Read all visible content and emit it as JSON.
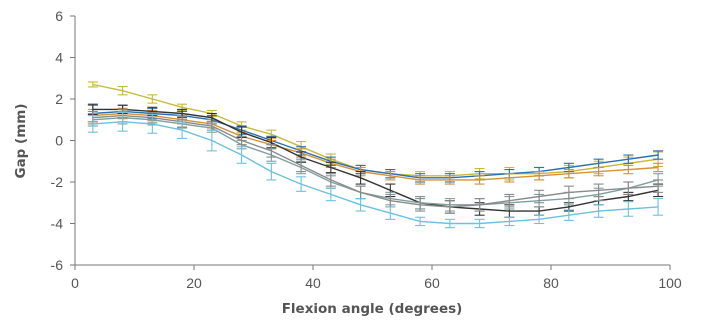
{
  "chart_data": {
    "type": "line",
    "title": "",
    "xlabel": "Flexion angle (degrees)",
    "ylabel": "Gap (mm)",
    "xlim": [
      0,
      100
    ],
    "ylim": [
      -6,
      6
    ],
    "xticks": [
      0,
      20,
      40,
      60,
      80,
      100
    ],
    "yticks": [
      -6,
      -4,
      -2,
      0,
      2,
      4,
      6
    ],
    "xtick_labels": [
      "0",
      "20",
      "40",
      "60",
      "80",
      "100"
    ],
    "ytick_labels": [
      "-6",
      "-4",
      "-2",
      "0",
      "2",
      "4",
      "6"
    ],
    "grid": false,
    "legend": "none",
    "x": [
      3,
      8,
      13,
      18,
      23,
      28,
      33,
      38,
      43,
      48,
      53,
      58,
      63,
      68,
      73,
      78,
      83,
      88,
      93,
      98
    ],
    "series": [
      {
        "color": "#c7b93a",
        "values": [
          2.7,
          2.4,
          2.0,
          1.6,
          1.3,
          0.7,
          0.3,
          -0.3,
          -0.9,
          -1.4,
          -1.6,
          -1.7,
          -1.7,
          -1.6,
          -1.6,
          -1.6,
          -1.5,
          -1.3,
          -1.1,
          -0.9
        ],
        "errors": [
          0.12,
          0.2,
          0.2,
          0.15,
          0.15,
          0.2,
          0.2,
          0.25,
          0.25,
          0.2,
          0.2,
          0.2,
          0.2,
          0.25,
          0.3,
          0.3,
          0.3,
          0.3,
          0.3,
          0.35
        ]
      },
      {
        "color": "#2a6fb3",
        "values": [
          1.3,
          1.4,
          1.3,
          1.2,
          1.0,
          0.5,
          0.0,
          -0.5,
          -1.0,
          -1.4,
          -1.6,
          -1.8,
          -1.8,
          -1.7,
          -1.6,
          -1.5,
          -1.3,
          -1.1,
          -0.9,
          -0.7
        ],
        "errors": [
          0.4,
          0.3,
          0.25,
          0.2,
          0.2,
          0.2,
          0.2,
          0.2,
          0.2,
          0.2,
          0.2,
          0.2,
          0.2,
          0.2,
          0.2,
          0.2,
          0.2,
          0.2,
          0.2,
          0.2
        ]
      },
      {
        "color": "#d4913a",
        "values": [
          1.2,
          1.3,
          1.2,
          1.0,
          0.8,
          0.2,
          -0.2,
          -0.6,
          -1.1,
          -1.5,
          -1.7,
          -1.9,
          -1.9,
          -1.9,
          -1.8,
          -1.7,
          -1.6,
          -1.5,
          -1.4,
          -1.3
        ],
        "errors": [
          0.3,
          0.25,
          0.25,
          0.2,
          0.2,
          0.2,
          0.2,
          0.2,
          0.2,
          0.2,
          0.2,
          0.2,
          0.2,
          0.2,
          0.2,
          0.2,
          0.2,
          0.2,
          0.2,
          0.2
        ]
      },
      {
        "color": "#333333",
        "values": [
          1.5,
          1.5,
          1.4,
          1.3,
          1.1,
          0.4,
          -0.1,
          -0.8,
          -1.3,
          -1.8,
          -2.4,
          -3.0,
          -3.2,
          -3.3,
          -3.4,
          -3.4,
          -3.2,
          -2.9,
          -2.7,
          -2.4
        ],
        "errors": [
          0.25,
          0.2,
          0.2,
          0.2,
          0.2,
          0.25,
          0.25,
          0.25,
          0.25,
          0.3,
          0.3,
          0.3,
          0.3,
          0.3,
          0.3,
          0.2,
          0.2,
          0.2,
          0.2,
          0.3
        ]
      },
      {
        "color": "#7e9f9e",
        "values": [
          1.0,
          1.1,
          1.0,
          0.8,
          0.6,
          -0.2,
          -0.7,
          -1.3,
          -2.0,
          -2.5,
          -2.8,
          -3.0,
          -3.1,
          -3.1,
          -3.0,
          -2.9,
          -2.8,
          -2.6,
          -2.3,
          -1.9
        ],
        "errors": [
          0.3,
          0.3,
          0.25,
          0.2,
          0.2,
          0.2,
          0.3,
          0.3,
          0.3,
          0.3,
          0.3,
          0.3,
          0.3,
          0.3,
          0.3,
          0.3,
          0.3,
          0.3,
          0.3,
          0.3
        ]
      },
      {
        "color": "#8a8a8a",
        "values": [
          1.1,
          1.2,
          1.1,
          0.9,
          0.7,
          0.0,
          -0.5,
          -1.2,
          -1.9,
          -2.5,
          -2.9,
          -3.1,
          -3.2,
          -3.1,
          -2.9,
          -2.7,
          -2.5,
          -2.4,
          -2.3,
          -2.2
        ],
        "errors": [
          0.3,
          0.3,
          0.25,
          0.25,
          0.2,
          0.2,
          0.3,
          0.3,
          0.3,
          0.3,
          0.3,
          0.3,
          0.3,
          0.3,
          0.3,
          0.3,
          0.3,
          0.3,
          0.3,
          0.3
        ]
      },
      {
        "color": "#6cc0e0",
        "values": [
          0.8,
          0.9,
          0.8,
          0.5,
          0.0,
          -0.7,
          -1.5,
          -2.1,
          -2.6,
          -3.1,
          -3.5,
          -3.9,
          -4.0,
          -4.0,
          -3.9,
          -3.8,
          -3.6,
          -3.4,
          -3.3,
          -3.2
        ],
        "errors": [
          0.4,
          0.45,
          0.45,
          0.4,
          0.5,
          0.4,
          0.4,
          0.35,
          0.3,
          0.3,
          0.3,
          0.2,
          0.2,
          0.2,
          0.2,
          0.2,
          0.25,
          0.3,
          0.35,
          0.4
        ]
      }
    ]
  }
}
